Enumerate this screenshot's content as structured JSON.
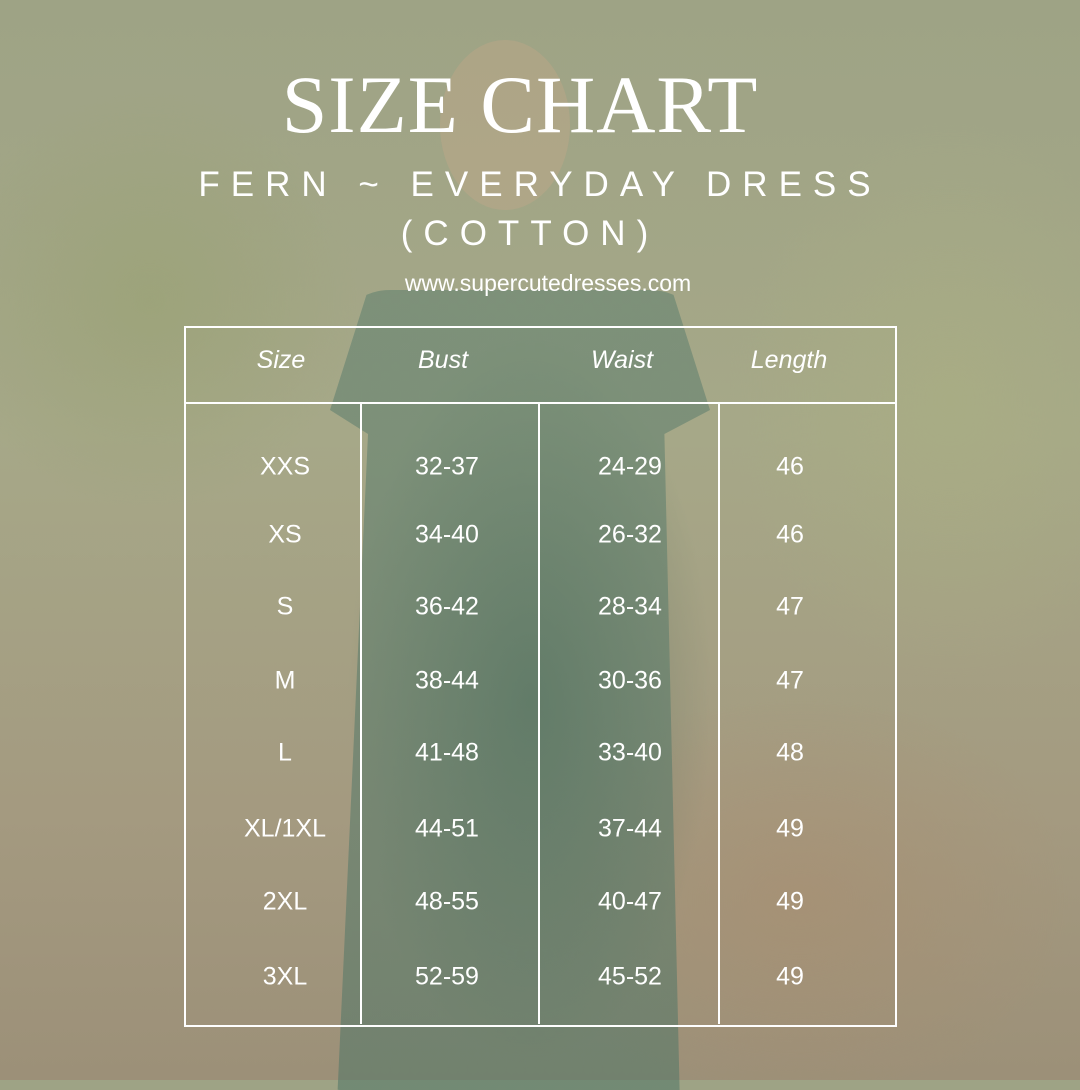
{
  "title": "SIZE CHART",
  "subtitle_line1": "FERN ~ EVERYDAY DRESS",
  "subtitle_line2": "(COTTON)",
  "website": "www.supercutedresses.com",
  "table": {
    "headers": [
      "Size",
      "Bust",
      "Waist",
      "Length"
    ],
    "rows": [
      [
        "XXS",
        "32-37",
        "24-29",
        "46"
      ],
      [
        "XS",
        "34-40",
        "26-32",
        "46"
      ],
      [
        "S",
        "36-42",
        "28-34",
        "47"
      ],
      [
        "M",
        "38-44",
        "30-36",
        "47"
      ],
      [
        "L",
        "41-48",
        "33-40",
        "48"
      ],
      [
        "XL/1XL",
        "44-51",
        "37-44",
        "49"
      ],
      [
        "2XL",
        "48-55",
        "40-47",
        "49"
      ],
      [
        "3XL",
        "52-59",
        "45-52",
        "49"
      ]
    ]
  },
  "colors": {
    "text": "#ffffff",
    "dress": "#4f7566"
  }
}
